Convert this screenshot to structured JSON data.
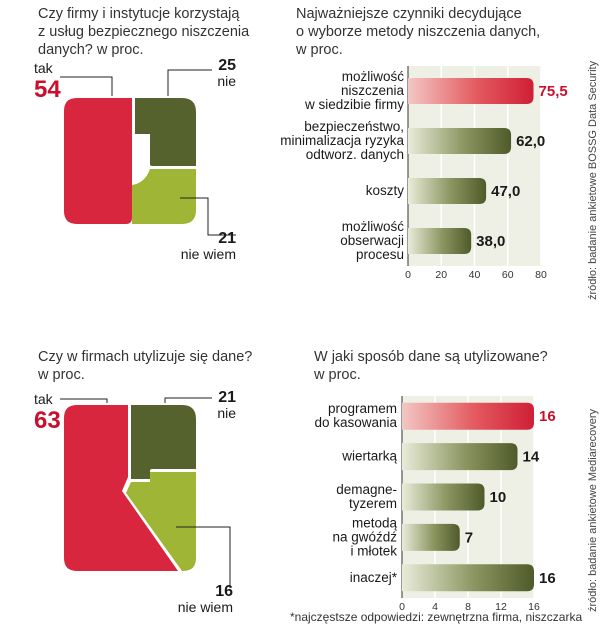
{
  "colors": {
    "red": "#d7263d",
    "dark_green": "#56622e",
    "light_green": "#9fb535",
    "bar_red": "#d6303f",
    "bar_green": "#56622e",
    "accent_text_red": "#c8102e"
  },
  "chart_data": [
    {
      "type": "pie",
      "title_lines": [
        "Czy firmy i instytucje korzystają",
        "z usług bezpiecznego niszczenia",
        "danych? w proc."
      ],
      "slices": [
        {
          "label": "tak",
          "value": 54,
          "color": "#d7263d"
        },
        {
          "label": "nie",
          "value": 25,
          "color": "#56622e"
        },
        {
          "label": "nie wiem",
          "value": 21,
          "color": "#9fb535"
        }
      ]
    },
    {
      "type": "bar",
      "orientation": "horizontal",
      "title_lines": [
        "Najważniejsze czynniki decydujące",
        "o wyborze metody niszczenia danych,",
        "w proc."
      ],
      "categories": [
        [
          "możliwość",
          "niszczenia",
          "w siedzibie firmy"
        ],
        [
          "bezpieczeństwo,",
          "minimalizacja ryzyka",
          "odtworz. danych"
        ],
        [
          "koszty"
        ],
        [
          "możliwość",
          "obserwacji",
          "procesu"
        ]
      ],
      "values": [
        75.5,
        62.0,
        47.0,
        38.0
      ],
      "value_labels": [
        "75,5",
        "62,0",
        "47,0",
        "38,0"
      ],
      "xlim": [
        0,
        80
      ],
      "ticks": [
        "0",
        "20",
        "40",
        "60",
        "80"
      ],
      "source": "źródło: badanie ankietowe BOSSG Data Security"
    },
    {
      "type": "pie",
      "title_lines": [
        "Czy w firmach utylizuje się dane?",
        "w proc."
      ],
      "slices": [
        {
          "label": "tak",
          "value": 63,
          "color": "#d7263d"
        },
        {
          "label": "nie",
          "value": 21,
          "color": "#56622e"
        },
        {
          "label": "nie wiem",
          "value": 16,
          "color": "#9fb535"
        }
      ]
    },
    {
      "type": "bar",
      "orientation": "horizontal",
      "title_lines": [
        "W jaki sposób dane są utylizowane?",
        "w proc."
      ],
      "categories": [
        [
          "programem",
          "do kasowania"
        ],
        [
          "wiertarką"
        ],
        [
          "demagne-",
          "tyzerem"
        ],
        [
          "metodą",
          "na gwóźdź",
          "i młotek"
        ],
        [
          "inaczej*"
        ]
      ],
      "values": [
        16,
        14,
        10,
        7,
        16
      ],
      "value_labels": [
        "16",
        "14",
        "10",
        "7",
        "16"
      ],
      "xlim": [
        0,
        16
      ],
      "ticks": [
        "0",
        "4",
        "8",
        "12",
        "16"
      ],
      "source": "źródło: badanie ankietowe Mediarecovery",
      "footnote": "*najczęstsze odpowiedzi: zewnętrzna firma, niszczarka"
    }
  ]
}
